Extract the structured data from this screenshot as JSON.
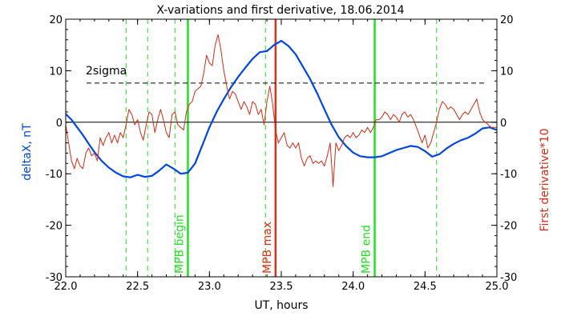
{
  "chart_data": {
    "type": "line",
    "title": "X-variations and first derivative, 18.06.2014",
    "xlabel": "UT, hours",
    "ylabel_left": "deltaX, nT",
    "ylabel_right": "First derivative*10",
    "xlim": [
      22.0,
      25.0
    ],
    "ylim": [
      -30,
      20
    ],
    "xticks": [
      22.0,
      22.5,
      23.0,
      23.5,
      24.0,
      24.5,
      25.0
    ],
    "xtick_labels": [
      "22.0",
      "22.5",
      "23.0",
      "23.5",
      "24.0",
      "24.5",
      "25.0"
    ],
    "yticks": [
      -30,
      -20,
      -10,
      0,
      10,
      20
    ],
    "ytick_labels": [
      "-30",
      "-20",
      "-10",
      "0",
      "10",
      "20"
    ],
    "grid": false,
    "sigma_level": 7.6,
    "sigma_label": "2sigma",
    "colors": {
      "deltaX": "#0047e0",
      "derivative": "#d62b16",
      "mpb_bound": "#22e022",
      "mpb_max": "#e0311a",
      "zero_line": "#000000",
      "sigma_line": "#000000"
    },
    "vertical_lines": [
      {
        "x": 22.42,
        "style": "dashed",
        "color": "green"
      },
      {
        "x": 22.57,
        "style": "dashed",
        "color": "green"
      },
      {
        "x": 22.76,
        "style": "dashed",
        "color": "green"
      },
      {
        "x": 22.85,
        "style": "solid",
        "color": "green",
        "label": "MPB begin"
      },
      {
        "x": 23.39,
        "style": "dashed",
        "color": "green"
      },
      {
        "x": 23.46,
        "style": "solid",
        "color": "red",
        "label": "MPB max"
      },
      {
        "x": 24.15,
        "style": "solid",
        "color": "green",
        "label": "MPB end"
      },
      {
        "x": 24.58,
        "style": "dashed",
        "color": "green"
      }
    ],
    "series": [
      {
        "key": "deltaX",
        "axis": "left",
        "x": [
          22.0,
          22.04,
          22.08,
          22.12,
          22.16,
          22.2,
          22.25,
          22.3,
          22.35,
          22.4,
          22.45,
          22.5,
          22.55,
          22.6,
          22.65,
          22.7,
          22.75,
          22.8,
          22.85,
          22.9,
          22.95,
          23.0,
          23.05,
          23.1,
          23.15,
          23.2,
          23.25,
          23.3,
          23.35,
          23.4,
          23.45,
          23.5,
          23.55,
          23.6,
          23.65,
          23.7,
          23.75,
          23.8,
          23.85,
          23.9,
          23.95,
          24.0,
          24.05,
          24.1,
          24.15,
          24.2,
          24.25,
          24.3,
          24.35,
          24.4,
          24.45,
          24.5,
          24.55,
          24.6,
          24.65,
          24.7,
          24.75,
          24.8,
          24.85,
          24.9,
          24.95,
          25.0
        ],
        "values": [
          1.6,
          0.5,
          -1.0,
          -2.5,
          -4.2,
          -5.8,
          -7.5,
          -8.8,
          -9.8,
          -10.5,
          -10.7,
          -10.2,
          -10.6,
          -10.4,
          -9.4,
          -8.2,
          -9.0,
          -10.0,
          -9.8,
          -8.0,
          -4.5,
          -1.0,
          2.0,
          4.5,
          6.8,
          8.8,
          10.6,
          12.3,
          13.6,
          13.8,
          15.0,
          15.8,
          14.8,
          13.2,
          10.8,
          8.4,
          5.6,
          2.5,
          -0.5,
          -2.9,
          -4.6,
          -5.9,
          -6.6,
          -6.8,
          -6.8,
          -6.6,
          -6.0,
          -5.4,
          -5.0,
          -4.6,
          -4.8,
          -5.6,
          -6.7,
          -6.2,
          -5.1,
          -4.2,
          -3.5,
          -3.0,
          -2.2,
          -1.2,
          -1.0,
          -1.5
        ]
      },
      {
        "key": "derivative",
        "axis": "right",
        "x": [
          22.0,
          22.02,
          22.04,
          22.06,
          22.08,
          22.1,
          22.12,
          22.14,
          22.16,
          22.18,
          22.2,
          22.22,
          22.24,
          22.26,
          22.28,
          22.3,
          22.32,
          22.34,
          22.36,
          22.38,
          22.4,
          22.42,
          22.44,
          22.46,
          22.48,
          22.5,
          22.52,
          22.54,
          22.56,
          22.58,
          22.6,
          22.62,
          22.64,
          22.66,
          22.68,
          22.7,
          22.72,
          22.74,
          22.76,
          22.78,
          22.8,
          22.82,
          22.84,
          22.86,
          22.88,
          22.9,
          22.92,
          22.94,
          22.96,
          22.98,
          23.0,
          23.02,
          23.04,
          23.06,
          23.08,
          23.1,
          23.12,
          23.14,
          23.16,
          23.18,
          23.2,
          23.22,
          23.24,
          23.26,
          23.28,
          23.3,
          23.32,
          23.34,
          23.36,
          23.38,
          23.4,
          23.42,
          23.44,
          23.46,
          23.48,
          23.5,
          23.52,
          23.54,
          23.56,
          23.58,
          23.6,
          23.62,
          23.64,
          23.66,
          23.68,
          23.7,
          23.72,
          23.74,
          23.76,
          23.78,
          23.8,
          23.82,
          23.84,
          23.86,
          23.88,
          23.9,
          23.92,
          23.94,
          23.96,
          23.98,
          24.0,
          24.02,
          24.04,
          24.06,
          24.08,
          24.1,
          24.12,
          24.14,
          24.16,
          24.18,
          24.2,
          24.22,
          24.24,
          24.26,
          24.28,
          24.3,
          24.32,
          24.34,
          24.36,
          24.38,
          24.4,
          24.42,
          24.44,
          24.46,
          24.48,
          24.5,
          24.52,
          24.54,
          24.56,
          24.58,
          24.6,
          24.62,
          24.64,
          24.66,
          24.68,
          24.7,
          24.72,
          24.74,
          24.76,
          24.78,
          24.8,
          24.82,
          24.84,
          24.86,
          24.88,
          24.9,
          24.92,
          24.94,
          24.96,
          24.98,
          25.0
        ],
        "values": [
          -0.5,
          -4.0,
          -7.5,
          -9.0,
          -7.0,
          -8.5,
          -9.0,
          -6.0,
          -5.0,
          -6.5,
          -6.0,
          -7.5,
          -3.0,
          -4.5,
          -3.0,
          -2.0,
          -4.0,
          -2.5,
          -4.0,
          -2.0,
          -3.0,
          -0.5,
          2.5,
          1.5,
          -0.5,
          0.5,
          -2.0,
          -3.5,
          -0.5,
          2.0,
          1.5,
          -2.0,
          0.5,
          2.5,
          0.5,
          -2.0,
          -3.0,
          1.5,
          2.0,
          -0.5,
          -1.0,
          -1.5,
          2.0,
          3.5,
          4.0,
          6.0,
          6.5,
          7.0,
          9.5,
          13.0,
          11.5,
          11.0,
          15.0,
          17.0,
          14.0,
          10.0,
          7.0,
          4.5,
          6.0,
          5.5,
          4.0,
          2.5,
          4.0,
          3.0,
          1.5,
          4.0,
          3.5,
          1.5,
          2.5,
          -0.5,
          4.0,
          7.0,
          3.5,
          -1.5,
          -4.0,
          -3.0,
          -2.0,
          -4.5,
          -5.0,
          -4.0,
          -5.0,
          -4.0,
          -7.0,
          -8.5,
          -7.0,
          -6.5,
          -8.0,
          -7.5,
          -8.0,
          -7.5,
          -8.5,
          -6.5,
          -4.0,
          -12.5,
          -4.0,
          -5.5,
          -4.5,
          -3.0,
          -2.5,
          -3.0,
          -2.0,
          -3.0,
          -2.5,
          -1.5,
          -2.0,
          -1.0,
          -2.0,
          -1.0,
          0.5,
          0.5,
          1.0,
          2.0,
          1.5,
          0.5,
          1.5,
          1.0,
          0.0,
          1.5,
          2.0,
          1.0,
          1.5,
          0.5,
          -1.0,
          -2.5,
          -4.0,
          -2.5,
          -5.0,
          -4.0,
          -2.0,
          0.0,
          2.5,
          4.0,
          3.5,
          2.5,
          3.0,
          2.5,
          1.5,
          0.5,
          1.5,
          2.0,
          1.5,
          2.5,
          3.5,
          4.5,
          2.0,
          0.5,
          0.0,
          -0.5,
          -1.0,
          -1.0,
          -1.0
        ]
      }
    ]
  }
}
